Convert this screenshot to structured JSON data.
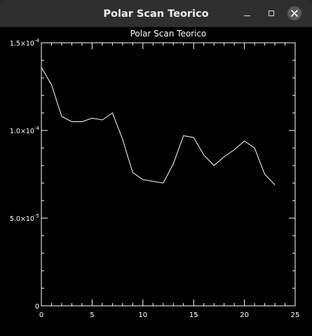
{
  "window": {
    "title": "Polar Scan Teorico"
  },
  "chart_data": {
    "type": "line",
    "title": "Polar Scan Teorico",
    "xlabel": "",
    "ylabel": "",
    "xlim": [
      0,
      25
    ],
    "ylim": [
      0,
      0.00015
    ],
    "grid": false,
    "background": "#000000",
    "line_color": "#ffffff",
    "x_ticks": [
      {
        "value": 0,
        "label": "0"
      },
      {
        "value": 5,
        "label": "5"
      },
      {
        "value": 10,
        "label": "10"
      },
      {
        "value": 15,
        "label": "15"
      },
      {
        "value": 20,
        "label": "20"
      },
      {
        "value": 25,
        "label": "25"
      }
    ],
    "y_ticks": [
      {
        "value": 0,
        "label": "0",
        "mantissa": "0",
        "exp": ""
      },
      {
        "value": 5e-05,
        "label": "5.0×10⁻⁵",
        "mantissa": "5.0×10",
        "exp": "-5"
      },
      {
        "value": 0.0001,
        "label": "1.0×10⁻⁴",
        "mantissa": "1.0×10",
        "exp": "-4"
      },
      {
        "value": 0.00015,
        "label": "1.5×10⁻⁴",
        "mantissa": "1.5×10",
        "exp": "-4"
      }
    ],
    "x": [
      0,
      1,
      2,
      3,
      4,
      5,
      6,
      7,
      8,
      9,
      10,
      11,
      12,
      13,
      14,
      15,
      16,
      17,
      18,
      19,
      20,
      21,
      22,
      23
    ],
    "values": [
      0.000136,
      0.000126,
      0.000108,
      0.000105,
      0.000105,
      0.000107,
      0.000106,
      0.00011,
      9.5e-05,
      7.6e-05,
      7.2e-05,
      7.1e-05,
      7e-05,
      8.1e-05,
      9.7e-05,
      9.6e-05,
      8.6e-05,
      8e-05,
      8.5e-05,
      8.9e-05,
      9.4e-05,
      9e-05,
      7.5e-05,
      6.9e-05
    ]
  }
}
